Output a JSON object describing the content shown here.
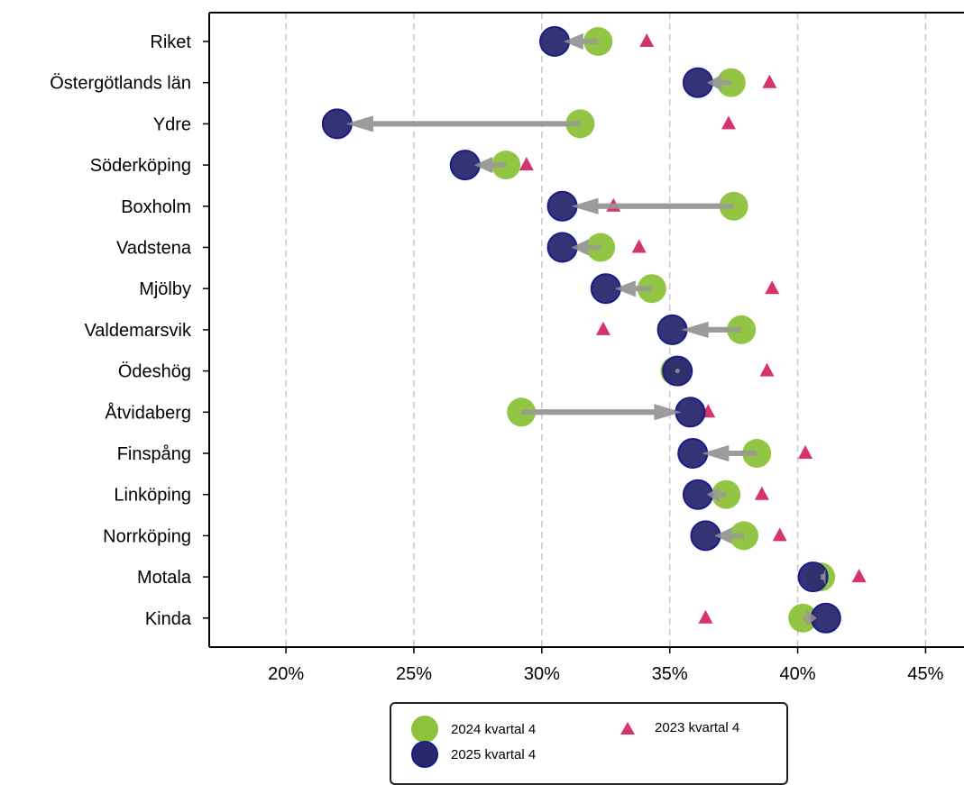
{
  "colors": {
    "series_2024": "#8dc23a",
    "series_2025": "#29286e",
    "series_2025_edge": "#1c1b8a",
    "series_2023": "#d4336f",
    "arrow": "#9a9a9a",
    "grid": "#c8c8c8",
    "axis": "#000000"
  },
  "chart_data": {
    "type": "scatter",
    "subtype": "dumbbell-with-arrows",
    "title": "",
    "xlabel": "",
    "ylabel": "",
    "xlim": [
      17,
      46.5
    ],
    "x_ticks": [
      20,
      25,
      30,
      35,
      40,
      45
    ],
    "x_tick_labels": [
      "20%",
      "25%",
      "30%",
      "35%",
      "40%",
      "45%"
    ],
    "grid": "vertical dashed",
    "legend_position": "bottom-center",
    "categories": [
      "Riket",
      "Östergötlands län",
      "Ydre",
      "Söderköping",
      "Boxholm",
      "Vadstena",
      "Mjölby",
      "Valdemarsvik",
      "Ödeshög",
      "Åtvidaberg",
      "Finspång",
      "Linköping",
      "Norrköping",
      "Motala",
      "Kinda"
    ],
    "series": [
      {
        "name": "2024 kvartal 4",
        "marker": "circle",
        "values": [
          32.2,
          37.4,
          31.5,
          28.6,
          37.5,
          32.3,
          34.3,
          37.8,
          35.2,
          29.2,
          38.4,
          37.2,
          37.9,
          40.9,
          40.2
        ]
      },
      {
        "name": "2025 kvartal 4",
        "marker": "circle",
        "values": [
          30.5,
          36.1,
          22.0,
          27.0,
          30.8,
          30.8,
          32.5,
          35.1,
          35.3,
          35.8,
          35.9,
          36.1,
          36.4,
          40.6,
          41.1
        ]
      },
      {
        "name": "2023 kvartal 4",
        "marker": "triangle",
        "values": [
          34.1,
          38.9,
          37.3,
          29.4,
          32.8,
          33.8,
          39.0,
          32.4,
          38.8,
          36.5,
          40.3,
          38.6,
          39.3,
          42.4,
          36.4
        ]
      }
    ]
  },
  "legend": {
    "item_2024": "2024 kvartal 4",
    "item_2025": "2025 kvartal 4",
    "item_2023": "2023 kvartal 4"
  }
}
